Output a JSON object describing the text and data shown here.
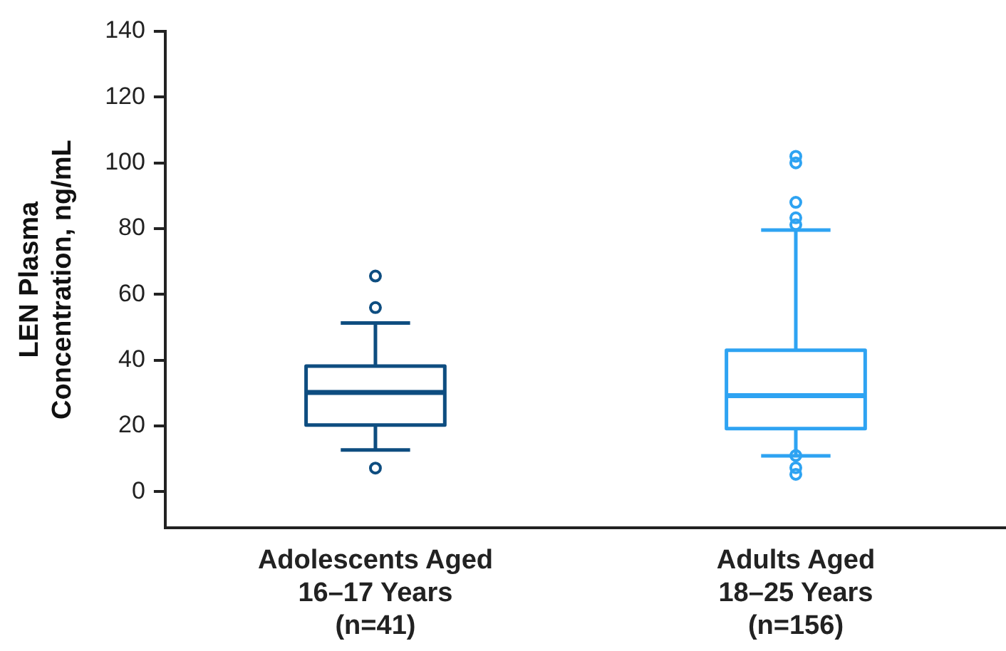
{
  "chart_data": {
    "type": "box",
    "ylabel": "LEN Plasma Concentration, ng/mL",
    "categories": [
      "Adolescents Aged\n16–17 Years\n(n=41)",
      "Adults Aged\n18–25 Years\n(n=156)"
    ],
    "colors": [
      "#0e4d80",
      "#2ea3f2"
    ],
    "boxes": [
      {
        "low": 12.7,
        "q1": 20.3,
        "median": 30.2,
        "q3": 38.2,
        "high": 51.3,
        "outliers": [
          7.2,
          56,
          65.6
        ]
      },
      {
        "low": 10.9,
        "q1": 19.2,
        "median": 29.2,
        "q3": 43,
        "high": 79.6,
        "outliers": [
          5.3,
          7.3,
          11,
          81.2,
          83.3,
          88,
          100,
          102
        ]
      }
    ],
    "ylim": [
      -11,
      140
    ],
    "yticks": [
      0,
      20,
      40,
      60,
      80,
      100,
      120,
      140
    ],
    "grid": false,
    "legend": false
  }
}
